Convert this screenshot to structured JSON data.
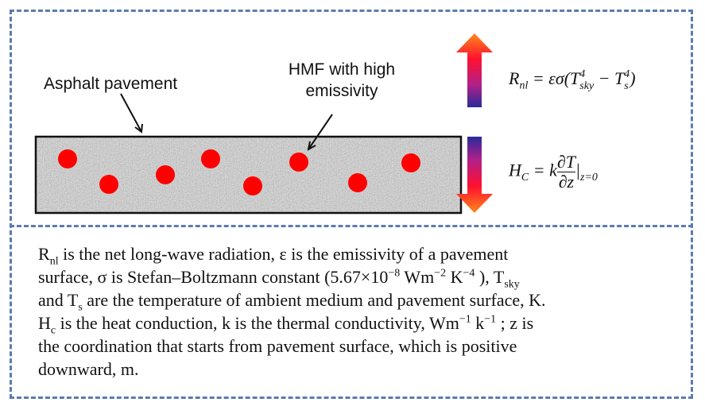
{
  "labels": {
    "asphalt": "Asphalt pavement",
    "hmf": [
      "HMF with high",
      "emissivity"
    ]
  },
  "equations": {
    "rnl": [
      "R",
      "nl",
      " = εσ(T",
      "4",
      "sky",
      " − T",
      "4",
      "s",
      ")"
    ],
    "hc": [
      "H",
      "C",
      " = k",
      "∂T",
      "∂z",
      "|",
      "z=0"
    ]
  },
  "caption": [
    [
      "R",
      "nl",
      " is the net long-wave radiation, ε is the emissivity of a pavement"
    ],
    [
      "surface, σ is Stefan–Boltzmann constant (5.67×10",
      "−8",
      " Wm",
      "−2",
      " K",
      "−4",
      " ), T",
      "sky"
    ],
    [
      "and T",
      "s",
      " are the temperature of ambient medium and pavement surface, K."
    ],
    [
      "H",
      "c",
      " is the heat conduction, k is the thermal conductivity, Wm",
      "−1",
      " k",
      "−1",
      " ; z is"
    ],
    [
      "the coordination that starts from pavement surface, which is positive"
    ],
    [
      "downward, m."
    ]
  ]
}
